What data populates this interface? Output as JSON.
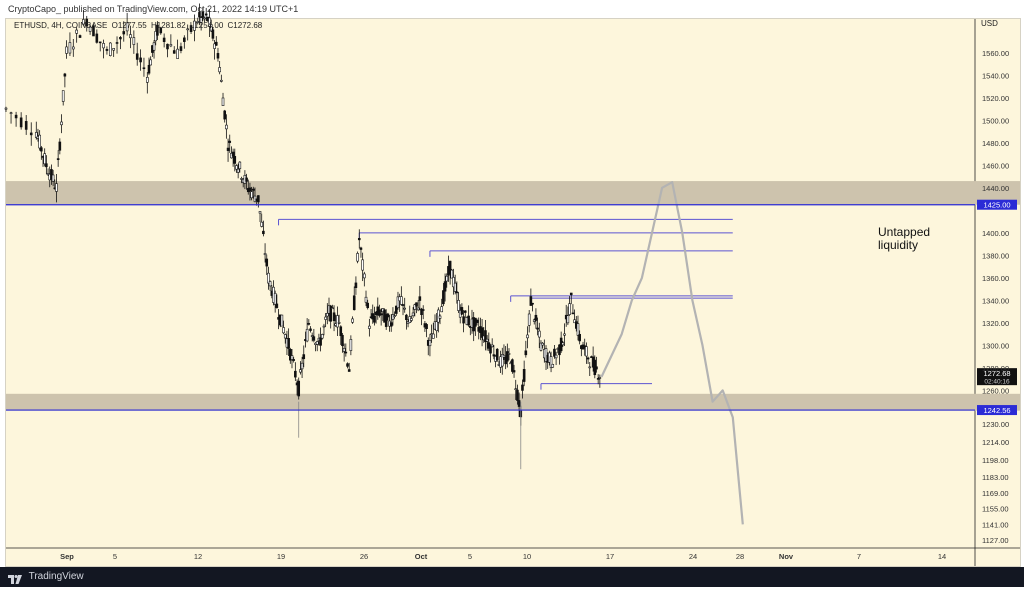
{
  "header": {
    "publish_line": "CryptoCapo_ published on TradingView.com, Oct 21, 2022 14:19 UTC+1"
  },
  "ohlc": {
    "symbol": "ETHUSD, 4H, COINBASE",
    "open": "O1277.55",
    "high": "H1281.82",
    "low": "L1254.00",
    "close": "C1272.68"
  },
  "footer": {
    "brand": "TradingView"
  },
  "colors": {
    "background": "#fdf6dc",
    "zone": "#cdc3ad",
    "level_line": "#2b2bd6",
    "liquidity_line": "#5b54d2",
    "candle": "#111111",
    "projection": "#b3b3b3"
  },
  "chart_data": {
    "type": "candlestick",
    "axis_unit": "USD",
    "y_ticks": [
      1127,
      1141,
      1155,
      1169,
      1183,
      1198,
      1214,
      1230,
      1260,
      1280,
      1300,
      1320,
      1340,
      1360,
      1380,
      1400,
      1440,
      1460,
      1480,
      1500,
      1520,
      1540,
      1560
    ],
    "x_ticks": [
      "Sep",
      "5",
      "12",
      "19",
      "26",
      "Oct",
      "5",
      "10",
      "17",
      "24",
      "28",
      "Nov",
      "7",
      "14"
    ],
    "ylim": [
      1120,
      1590
    ],
    "levels": [
      {
        "label": "1425.00",
        "price": 1425.0
      },
      {
        "label": "1242.56",
        "price": 1242.56
      }
    ],
    "zones": [
      {
        "name": "upper",
        "from": 1425,
        "to": 1446
      },
      {
        "name": "lower",
        "from": 1242,
        "to": 1257
      }
    ],
    "last_price": {
      "price": "1272.68",
      "countdown": "02:40:16"
    },
    "liquidity_levels": [
      {
        "start": "2022-09-20",
        "price": 1412
      },
      {
        "start": "2022-09-28",
        "price": 1400
      },
      {
        "start": "2022-10-05",
        "price": 1384
      },
      {
        "start": "2022-10-13",
        "price": 1344
      },
      {
        "start": "2022-10-15",
        "price": 1342
      },
      {
        "start": "2022-10-16",
        "price": 1266
      }
    ],
    "annotation": "Untapped\nliquidity",
    "price_path": [
      {
        "t": "2022-08-24",
        "p": 1510
      },
      {
        "t": "2022-08-27",
        "p": 1490
      },
      {
        "t": "2022-08-28",
        "p": 1460
      },
      {
        "t": "2022-08-29",
        "p": 1440
      },
      {
        "t": "2022-08-30",
        "p": 1560
      },
      {
        "t": "2022-09-01",
        "p": 1590
      },
      {
        "t": "2022-09-03",
        "p": 1560
      },
      {
        "t": "2022-09-05",
        "p": 1580
      },
      {
        "t": "2022-09-07",
        "p": 1540
      },
      {
        "t": "2022-09-08",
        "p": 1580
      },
      {
        "t": "2022-09-10",
        "p": 1560
      },
      {
        "t": "2022-09-12",
        "p": 1590
      },
      {
        "t": "2022-09-13",
        "p": 1590
      },
      {
        "t": "2022-09-14",
        "p": 1560
      },
      {
        "t": "2022-09-15",
        "p": 1480
      },
      {
        "t": "2022-09-16",
        "p": 1460
      },
      {
        "t": "2022-09-17",
        "p": 1440
      },
      {
        "t": "2022-09-18",
        "p": 1430
      },
      {
        "t": "2022-09-19",
        "p": 1360
      },
      {
        "t": "2022-09-20",
        "p": 1330
      },
      {
        "t": "2022-09-21",
        "p": 1300
      },
      {
        "t": "2022-09-22",
        "p": 1262
      },
      {
        "t": "2022-09-23",
        "p": 1320
      },
      {
        "t": "2022-09-24",
        "p": 1300
      },
      {
        "t": "2022-09-25",
        "p": 1330
      },
      {
        "t": "2022-09-26",
        "p": 1320
      },
      {
        "t": "2022-09-27",
        "p": 1280
      },
      {
        "t": "2022-09-28",
        "p": 1395
      },
      {
        "t": "2022-09-29",
        "p": 1320
      },
      {
        "t": "2022-09-30",
        "p": 1330
      },
      {
        "t": "2022-10-01",
        "p": 1320
      },
      {
        "t": "2022-10-02",
        "p": 1340
      },
      {
        "t": "2022-10-03",
        "p": 1320
      },
      {
        "t": "2022-10-04",
        "p": 1340
      },
      {
        "t": "2022-10-05",
        "p": 1300
      },
      {
        "t": "2022-10-06",
        "p": 1330
      },
      {
        "t": "2022-10-07",
        "p": 1370
      },
      {
        "t": "2022-10-08",
        "p": 1330
      },
      {
        "t": "2022-10-09",
        "p": 1320
      },
      {
        "t": "2022-10-10",
        "p": 1315
      },
      {
        "t": "2022-10-11",
        "p": 1300
      },
      {
        "t": "2022-10-12",
        "p": 1285
      },
      {
        "t": "2022-10-13",
        "p": 1290
      },
      {
        "t": "2022-10-14",
        "p": 1242
      },
      {
        "t": "2022-10-15",
        "p": 1340
      },
      {
        "t": "2022-10-16",
        "p": 1300
      },
      {
        "t": "2022-10-17",
        "p": 1285
      },
      {
        "t": "2022-10-18",
        "p": 1300
      },
      {
        "t": "2022-10-19",
        "p": 1340
      },
      {
        "t": "2022-10-20",
        "p": 1300
      },
      {
        "t": "2022-10-21",
        "p": 1285
      },
      {
        "t": "2022-10-22",
        "p": 1272.68
      }
    ],
    "projection_path": [
      {
        "t": "2022-10-22",
        "p": 1272
      },
      {
        "t": "2022-10-24",
        "p": 1310
      },
      {
        "t": "2022-10-25",
        "p": 1340
      },
      {
        "t": "2022-10-26",
        "p": 1360
      },
      {
        "t": "2022-10-27",
        "p": 1400
      },
      {
        "t": "2022-10-28",
        "p": 1440
      },
      {
        "t": "2022-10-29",
        "p": 1445
      },
      {
        "t": "2022-10-30",
        "p": 1400
      },
      {
        "t": "2022-10-31",
        "p": 1340
      },
      {
        "t": "2022-11-01",
        "p": 1300
      },
      {
        "t": "2022-11-02",
        "p": 1250
      },
      {
        "t": "2022-11-03",
        "p": 1260
      },
      {
        "t": "2022-11-04",
        "p": 1236
      },
      {
        "t": "2022-11-05",
        "p": 1141
      }
    ]
  }
}
